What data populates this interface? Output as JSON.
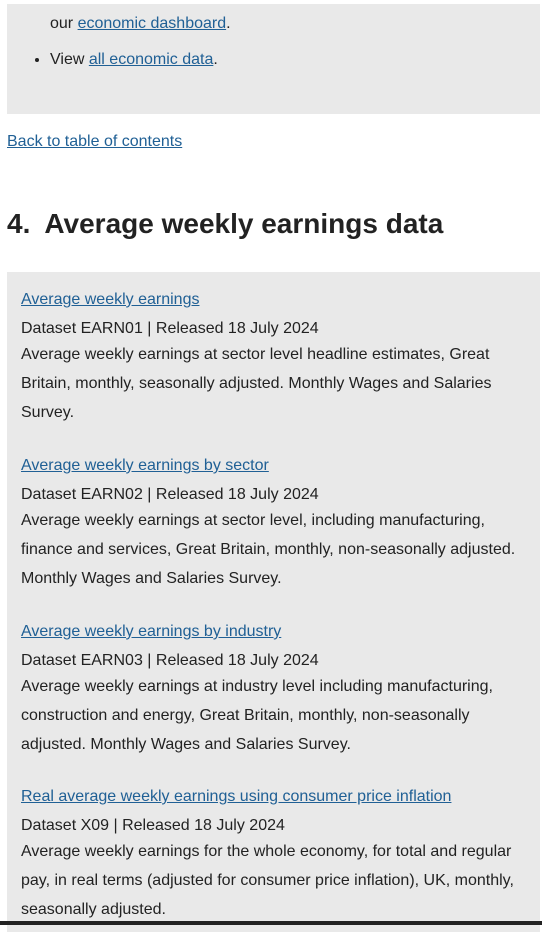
{
  "top_box": {
    "prefix": "our ",
    "dashboard_link": "economic dashboard",
    "dashboard_suffix": ".",
    "bullet_prefix": "View ",
    "all_data_link": "all economic data",
    "bullet_suffix": "."
  },
  "back_link": "Back to table of contents",
  "section": {
    "number": "4.",
    "title": "Average weekly earnings data"
  },
  "datasets": [
    {
      "title": "Average weekly earnings",
      "meta": "Dataset EARN01 | Released 18 July 2024",
      "description": "Average weekly earnings at sector level headline estimates, Great Britain, monthly, seasonally adjusted. Monthly Wages and Salaries Survey."
    },
    {
      "title": "Average weekly earnings by sector",
      "meta": "Dataset EARN02 | Released 18 July 2024",
      "description": "Average weekly earnings at sector level, including manufacturing, finance and services, Great Britain, monthly, non-seasonally adjusted. Monthly Wages and Salaries Survey."
    },
    {
      "title": "Average weekly earnings by industry",
      "meta": "Dataset EARN03 | Released 18 July 2024",
      "description": "Average weekly earnings at industry level including manufacturing, construction and energy, Great Britain, monthly, non-seasonally adjusted. Monthly Wages and Salaries Survey."
    },
    {
      "title": "Real average weekly earnings using consumer price inflation",
      "meta": "Dataset X09 | Released 18 July 2024",
      "description": "Average weekly earnings for the whole economy, for total and regular pay, in real terms (adjusted for consumer price inflation), UK, monthly, seasonally adjusted."
    }
  ]
}
